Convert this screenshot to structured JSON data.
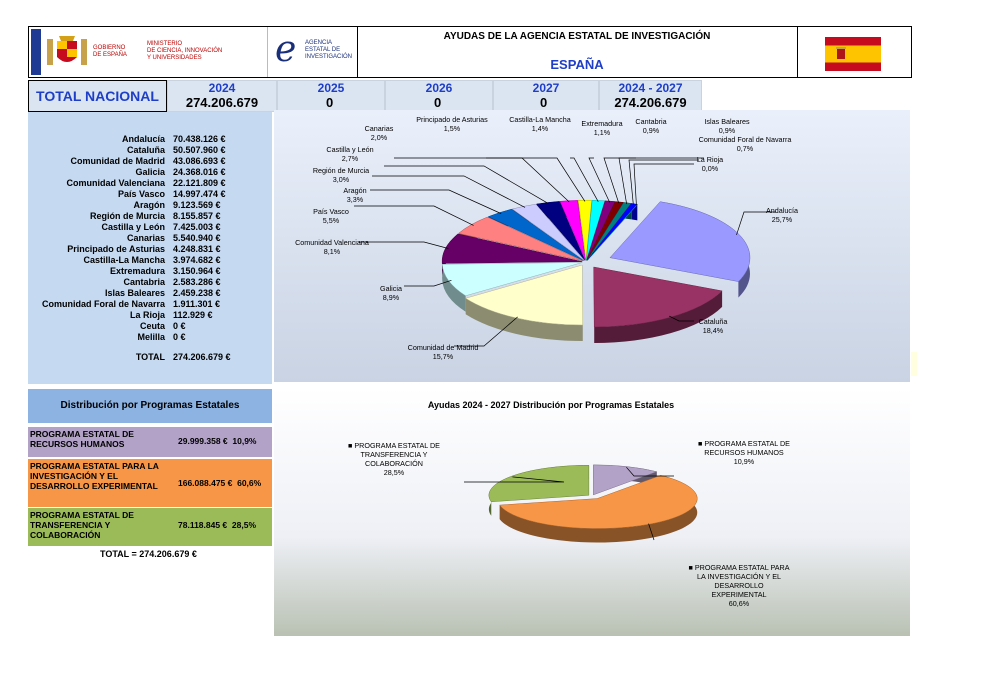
{
  "header": {
    "gov_line1": "GOBIERNO",
    "gov_line2": "DE ESPAÑA",
    "ministry_line1": "MINISTERIO",
    "ministry_line2": "DE CIENCIA, INNOVACIÓN",
    "ministry_line3": "Y UNIVERSIDADES",
    "agency_line1": "AGENCIA",
    "agency_line2": "ESTATAL DE",
    "agency_line3": "INVESTIGACIÓN",
    "title": "AYUDAS DE LA AGENCIA ESTATAL DE INVESTIGACIÓN",
    "country": "ESPAÑA"
  },
  "totals": {
    "label": "TOTAL NACIONAL",
    "years": [
      {
        "year": "2024",
        "value": "274.206.679"
      },
      {
        "year": "2025",
        "value": "0"
      },
      {
        "year": "2026",
        "value": "0"
      },
      {
        "year": "2027",
        "value": "0"
      },
      {
        "year": "2024 - 2027",
        "value": "274.206.679"
      }
    ]
  },
  "regions": [
    {
      "name": "Andalucía",
      "value": "70.438.126 €"
    },
    {
      "name": "Cataluña",
      "value": "50.507.960 €"
    },
    {
      "name": "Comunidad de Madrid",
      "value": "43.086.693 €"
    },
    {
      "name": "Galicia",
      "value": "24.368.016 €"
    },
    {
      "name": "Comunidad Valenciana",
      "value": "22.121.809 €"
    },
    {
      "name": "País Vasco",
      "value": "14.997.474 €"
    },
    {
      "name": "Aragón",
      "value": "9.123.569 €"
    },
    {
      "name": "Región de Murcia",
      "value": "8.155.857 €"
    },
    {
      "name": "Castilla y León",
      "value": "7.425.003 €"
    },
    {
      "name": "Canarias",
      "value": "5.540.940 €"
    },
    {
      "name": "Principado de Asturias",
      "value": "4.248.831 €"
    },
    {
      "name": "Castilla-La Mancha",
      "value": "3.974.682 €"
    },
    {
      "name": "Extremadura",
      "value": "3.150.964 €"
    },
    {
      "name": "Cantabria",
      "value": "2.583.286 €"
    },
    {
      "name": "Islas Baleares",
      "value": "2.459.238 €"
    },
    {
      "name": "Comunidad Foral de Navarra",
      "value": "1.911.301 €"
    },
    {
      "name": "La Rioja",
      "value": "112.929 €"
    },
    {
      "name": "Ceuta",
      "value": "0 €"
    },
    {
      "name": "Melilla",
      "value": "0 €"
    }
  ],
  "regions_total": {
    "label": "TOTAL",
    "value": "274.206.679 €"
  },
  "programs": {
    "header": "Distribución por Programas Estatales",
    "items": [
      {
        "name": "PROGRAMA ESTATAL DE RECURSOS HUMANOS",
        "value": "29.999.358 €",
        "pct": "10,9%",
        "color": "#b2a2c7"
      },
      {
        "name": "PROGRAMA ESTATAL PARA LA INVESTIGACIÓN Y EL DESARROLLO EXPERIMENTAL",
        "value": "166.088.475 €",
        "pct": "60,6%",
        "color": "#f79646"
      },
      {
        "name": "PROGRAMA ESTATAL DE TRANSFERENCIA Y COLABORACIÓN",
        "value": "78.118.845 €",
        "pct": "28,5%",
        "color": "#9bbb59"
      }
    ],
    "total_label": "TOTAL =",
    "total_value": "274.206.679 €"
  },
  "chart_data": [
    {
      "type": "pie",
      "title": "",
      "categories": [
        "Andalucía",
        "Cataluña",
        "Comunidad de Madrid",
        "Galicia",
        "Comunidad Valenciana",
        "País Vasco",
        "Aragón",
        "Región de Murcia",
        "Castilla y León",
        "Canarias",
        "Principado de Asturias",
        "Castilla-La Mancha",
        "Extremadura",
        "Cantabria",
        "Islas Baleares",
        "Comunidad Foral de Navarra",
        "La Rioja"
      ],
      "values": [
        70438126,
        50507960,
        43086693,
        24368016,
        22121809,
        14997474,
        9123569,
        8155857,
        7425003,
        5540940,
        4248831,
        3974682,
        3150964,
        2583286,
        2459238,
        1911301,
        112929
      ],
      "labels": [
        "25,7%",
        "18,4%",
        "15,7%",
        "8,9%",
        "8,1%",
        "5,5%",
        "3,3%",
        "3,0%",
        "2,7%",
        "2,0%",
        "1,5%",
        "1,4%",
        "1,1%",
        "0,9%",
        "0,9%",
        "0,7%",
        "0,0%"
      ],
      "colors": [
        "#9999ff",
        "#993366",
        "#ffffcc",
        "#ccffff",
        "#660066",
        "#ff8080",
        "#0066cc",
        "#ccccff",
        "#000080",
        "#ff00ff",
        "#ffff00",
        "#00ffff",
        "#800080",
        "#800000",
        "#008080",
        "#0000ff",
        "#00ccff"
      ]
    },
    {
      "type": "pie",
      "title": "Ayudas 2024 - 2027  Distribución por Programas Estatales",
      "categories": [
        "PROGRAMA ESTATAL DE RECURSOS HUMANOS",
        "PROGRAMA ESTATAL PARA LA INVESTIGACIÓN Y EL DESARROLLO EXPERIMENTAL",
        "PROGRAMA ESTATAL DE TRANSFERENCIA Y COLABORACIÓN"
      ],
      "values": [
        29999358,
        166088475,
        78118845
      ],
      "labels": [
        "10,9%",
        "60,6%",
        "28,5%"
      ],
      "colors": [
        "#b2a2c7",
        "#f79646",
        "#9bbb59"
      ]
    }
  ]
}
